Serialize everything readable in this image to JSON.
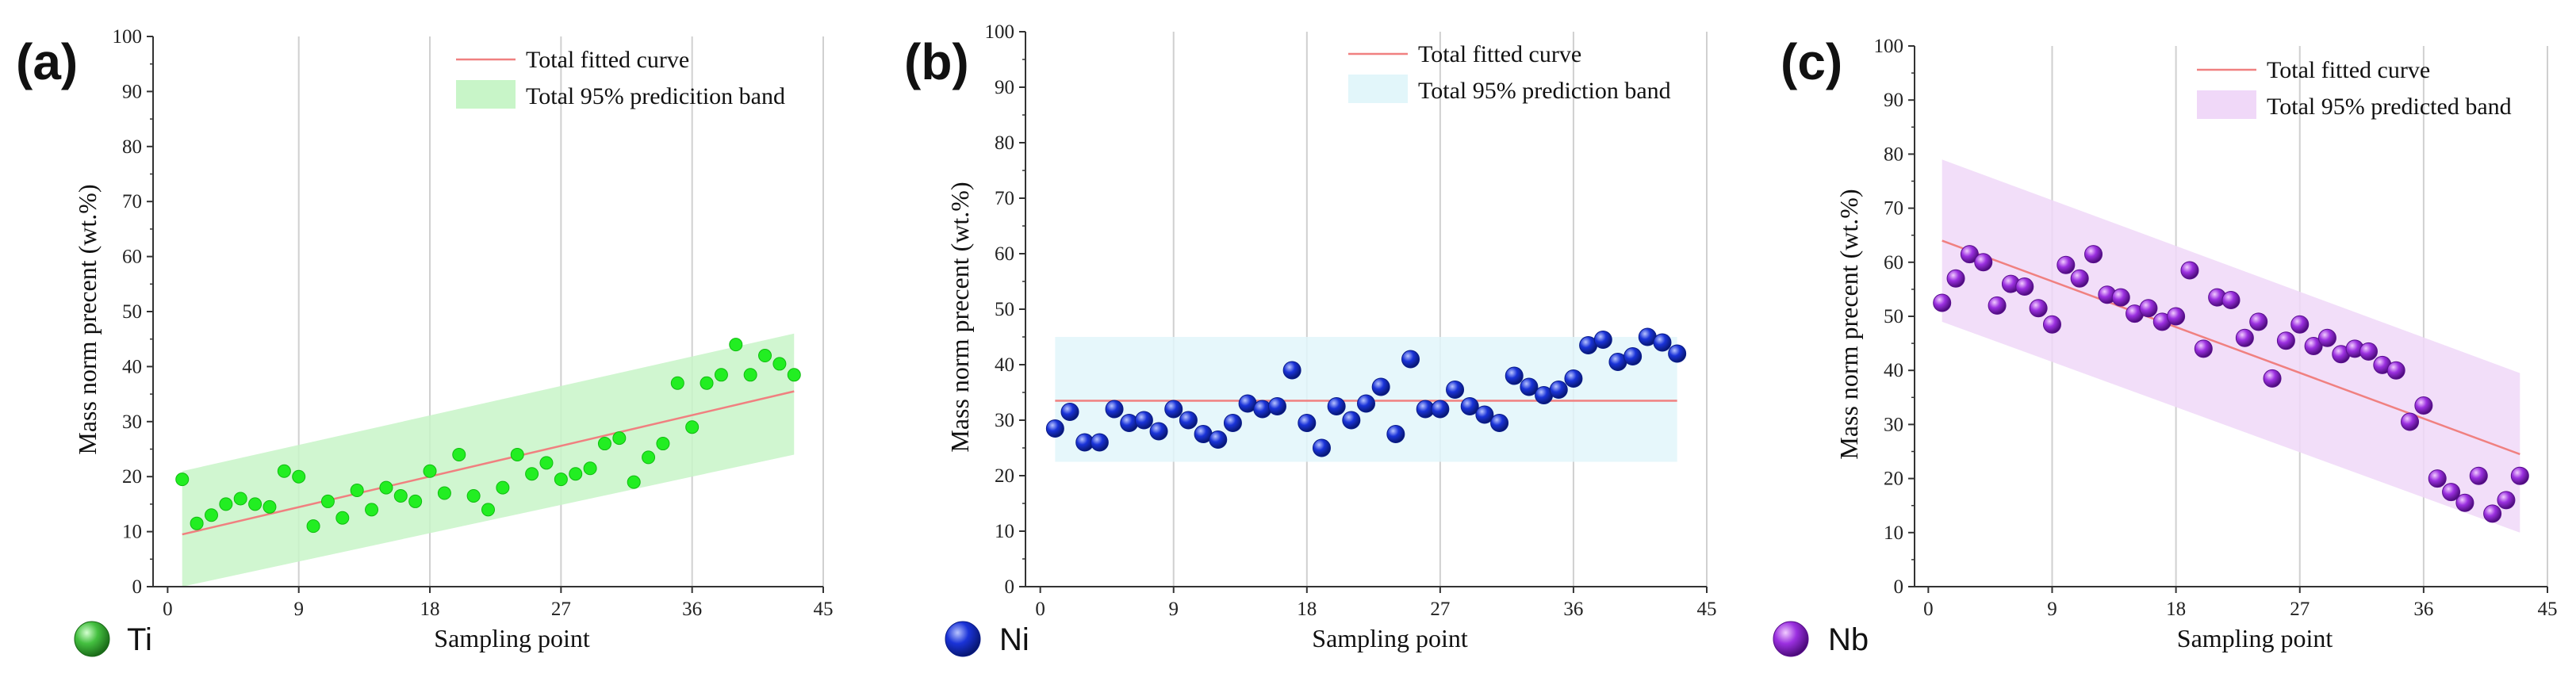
{
  "chart_data": [
    {
      "type": "scatter",
      "panel_label": "(a)",
      "element": "Ti",
      "xlabel": "Sampling point",
      "ylabel": "Mass norm  precent  (wt.%)",
      "xlim": [
        -1,
        45
      ],
      "ylim": [
        0,
        100
      ],
      "xticks": [
        0,
        9,
        18,
        27,
        36,
        45
      ],
      "yticks": [
        0,
        10,
        20,
        30,
        40,
        50,
        60,
        70,
        80,
        90,
        100
      ],
      "legend": [
        "Total fitted curve",
        "Total 95% predicition band"
      ],
      "colors": {
        "marker": "#22ee22",
        "marker_edge": "#11bb11",
        "fit": "#f08080",
        "band": "#c8f5c8"
      },
      "marker_style": "dot",
      "fit": {
        "x": [
          1,
          43
        ],
        "y": [
          9.5,
          35.5
        ]
      },
      "band": {
        "x": [
          1,
          43
        ],
        "lower": [
          0,
          24
        ],
        "upper": [
          21,
          46
        ]
      },
      "x": [
        1,
        2,
        3,
        4,
        5,
        6,
        7,
        8,
        9,
        10,
        11,
        12,
        13,
        14,
        15,
        16,
        17,
        18,
        19,
        20,
        21,
        22,
        23,
        24,
        25,
        26,
        27,
        28,
        29,
        30,
        31,
        32,
        33,
        34,
        35,
        36,
        37,
        38,
        39,
        40,
        41,
        42,
        43
      ],
      "y": [
        19.5,
        11.5,
        13,
        15,
        16,
        15,
        14.5,
        21,
        20,
        11,
        15.5,
        12.5,
        17.5,
        14,
        18,
        16.5,
        15.5,
        21,
        17,
        24,
        16.5,
        14,
        18,
        24,
        20.5,
        22.5,
        19.5,
        20.5,
        21.5,
        26,
        27,
        19,
        23.5,
        26,
        37,
        29,
        37,
        38.5,
        44,
        38.5,
        42,
        40.5,
        38.5
      ]
    },
    {
      "type": "scatter",
      "panel_label": "(b)",
      "element": "Ni",
      "xlabel": "Sampling point",
      "ylabel": "Mass norm  precent  (wt.%)",
      "xlim": [
        -1,
        45
      ],
      "ylim": [
        0,
        100
      ],
      "xticks": [
        0,
        9,
        18,
        27,
        36,
        45
      ],
      "yticks": [
        0,
        10,
        20,
        30,
        40,
        50,
        60,
        70,
        80,
        90,
        100
      ],
      "legend": [
        "Total fitted curve",
        "Total 95% prediction band"
      ],
      "colors": {
        "marker": "#1a33d8",
        "marker_edge": "#0a1c8a",
        "fit": "#f08080",
        "band": "#e2f6fa"
      },
      "marker_style": "sphere",
      "fit": {
        "x": [
          1,
          43
        ],
        "y": [
          33.5,
          33.5
        ]
      },
      "band": {
        "x": [
          1,
          43
        ],
        "lower": [
          22.5,
          22.5
        ],
        "upper": [
          45,
          45
        ]
      },
      "x": [
        1,
        2,
        3,
        4,
        5,
        6,
        7,
        8,
        9,
        10,
        11,
        12,
        13,
        14,
        15,
        16,
        17,
        18,
        19,
        20,
        21,
        22,
        23,
        24,
        25,
        26,
        27,
        28,
        29,
        30,
        31,
        32,
        33,
        34,
        35,
        36,
        37,
        38,
        39,
        40,
        41,
        42,
        43
      ],
      "y": [
        28.5,
        31.5,
        26,
        26,
        32,
        29.5,
        30,
        28,
        32,
        30,
        27.5,
        26.5,
        29.5,
        33,
        32,
        32.5,
        39,
        29.5,
        25,
        32.5,
        30,
        33,
        36,
        27.5,
        41,
        32,
        32,
        35.5,
        32.5,
        31,
        29.5,
        38,
        36,
        34.5,
        35.5,
        37.5,
        43.5,
        44.5,
        40.5,
        41.5,
        45,
        44,
        42
      ]
    },
    {
      "type": "scatter",
      "panel_label": "(c)",
      "element": "Nb",
      "xlabel": "Sampling point",
      "ylabel": "Mass norm  precent  (wt.%)",
      "xlim": [
        -1,
        45
      ],
      "ylim": [
        0,
        100
      ],
      "xticks": [
        0,
        9,
        18,
        27,
        36,
        45
      ],
      "yticks": [
        0,
        10,
        20,
        30,
        40,
        50,
        60,
        70,
        80,
        90,
        100
      ],
      "legend": [
        "Total fitted curve",
        "Total 95% predicted band"
      ],
      "colors": {
        "marker": "#9b30e0",
        "marker_edge": "#5a0f8f",
        "fit": "#f08080",
        "band": "#f0d8f8"
      },
      "marker_style": "sphere",
      "fit": {
        "x": [
          1,
          43
        ],
        "y": [
          64,
          24.5
        ]
      },
      "band": {
        "x": [
          1,
          43
        ],
        "lower": [
          49,
          10
        ],
        "upper": [
          79,
          39.5
        ]
      },
      "x": [
        1,
        2,
        3,
        4,
        5,
        6,
        7,
        8,
        9,
        10,
        11,
        12,
        13,
        14,
        15,
        16,
        17,
        18,
        19,
        20,
        21,
        22,
        23,
        24,
        25,
        26,
        27,
        28,
        29,
        30,
        31,
        32,
        33,
        34,
        35,
        36,
        37,
        38,
        39,
        40,
        41,
        42,
        43
      ],
      "y": [
        52.5,
        57,
        61.5,
        60,
        52,
        56,
        55.5,
        51.5,
        48.5,
        59.5,
        57,
        61.5,
        54,
        53.5,
        50.5,
        51.5,
        49,
        50,
        58.5,
        44,
        53.5,
        53,
        46,
        49,
        38.5,
        45.5,
        48.5,
        44.5,
        46,
        43,
        44,
        43.5,
        41,
        40,
        30.5,
        33.5,
        20,
        17.5,
        15.5,
        20.5,
        13.5,
        16,
        20.5
      ]
    }
  ]
}
